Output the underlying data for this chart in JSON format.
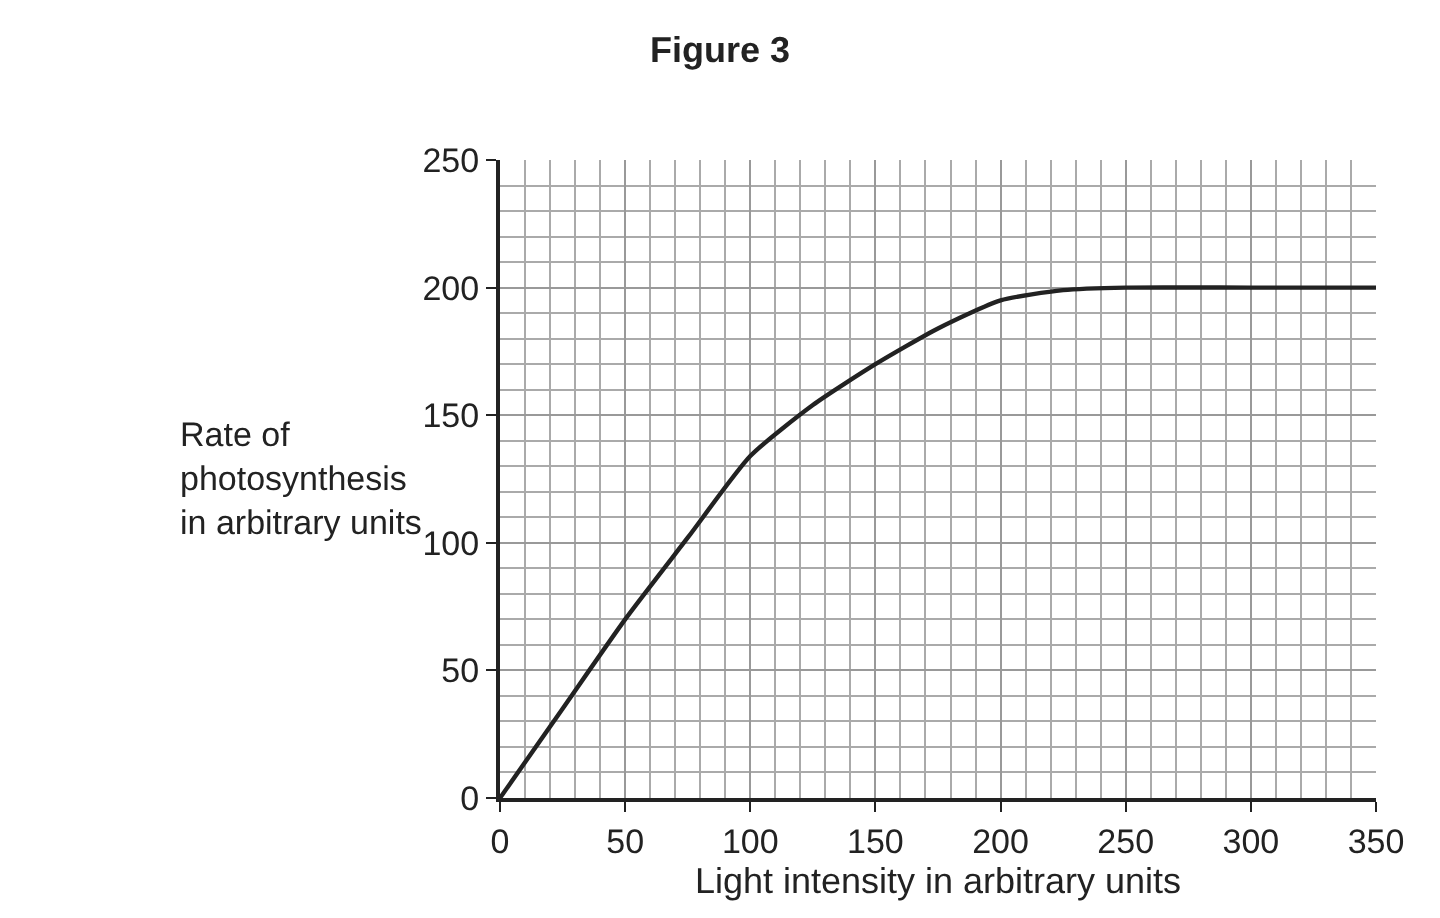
{
  "chart_data": {
    "type": "line",
    "title": "Figure 3",
    "xlabel": "Light intensity in arbitrary units",
    "ylabel": "Rate of\nphotosynthesis\nin arbitrary units",
    "x": [
      0,
      25,
      50,
      75,
      100,
      125,
      150,
      175,
      200,
      225,
      250,
      300,
      350
    ],
    "series": [
      {
        "color": "#222222",
        "values": [
          0,
          35,
          70,
          102,
          134,
          154,
          170,
          184,
          195,
          199,
          200,
          200,
          200
        ]
      }
    ],
    "xlim": [
      0,
      350
    ],
    "ylim": [
      0,
      250
    ],
    "xticks": [
      0,
      50,
      100,
      150,
      200,
      250,
      300,
      350
    ],
    "yticks": [
      0,
      50,
      100,
      150,
      200,
      250
    ],
    "grid": true,
    "marker": "none",
    "line_style": "solid",
    "legend": false
  }
}
